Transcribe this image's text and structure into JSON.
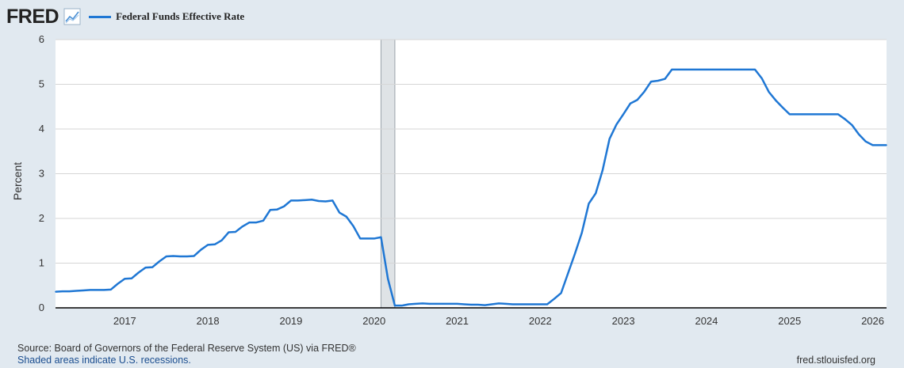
{
  "header": {
    "logo": "FRED",
    "logo_icon": "chart-trend-icon",
    "series_label": "Federal Funds Effective Rate"
  },
  "footer": {
    "source": "Source: Board of Governors of the Federal Reserve System (US) via FRED®",
    "recession_note": "Shaded areas indicate U.S. recessions.",
    "url": "fred.stlouisfed.org"
  },
  "colors": {
    "line": "#1f77d4",
    "background": "#e1e9f0",
    "plot_background": "#ffffff",
    "grid": "#d6d6d6",
    "recession": "#dfe3e6"
  },
  "chart_data": {
    "type": "line",
    "title": "",
    "ylabel": "Percent",
    "xlabel": "",
    "xlim": [
      "2016-03-01",
      "2026-03-01"
    ],
    "ylim": [
      0,
      6
    ],
    "yticks": [
      0,
      1,
      2,
      3,
      4,
      5,
      6
    ],
    "xticks": [
      "2017",
      "2018",
      "2019",
      "2020",
      "2021",
      "2022",
      "2023",
      "2024",
      "2025",
      "2026"
    ],
    "grid": true,
    "legend": "top-left",
    "recessions": [
      [
        "2020-02-01",
        "2020-04-01"
      ]
    ],
    "series": [
      {
        "name": "Federal Funds Effective Rate",
        "x": [
          "2016-03",
          "2016-04",
          "2016-05",
          "2016-06",
          "2016-07",
          "2016-08",
          "2016-09",
          "2016-10",
          "2016-11",
          "2016-12",
          "2017-01",
          "2017-02",
          "2017-03",
          "2017-04",
          "2017-05",
          "2017-06",
          "2017-07",
          "2017-08",
          "2017-09",
          "2017-10",
          "2017-11",
          "2017-12",
          "2018-01",
          "2018-02",
          "2018-03",
          "2018-04",
          "2018-05",
          "2018-06",
          "2018-07",
          "2018-08",
          "2018-09",
          "2018-10",
          "2018-11",
          "2018-12",
          "2019-01",
          "2019-02",
          "2019-03",
          "2019-04",
          "2019-05",
          "2019-06",
          "2019-07",
          "2019-08",
          "2019-09",
          "2019-10",
          "2019-11",
          "2019-12",
          "2020-01",
          "2020-02",
          "2020-03",
          "2020-04",
          "2020-05",
          "2020-06",
          "2020-07",
          "2020-08",
          "2020-09",
          "2020-10",
          "2020-11",
          "2020-12",
          "2021-01",
          "2021-02",
          "2021-03",
          "2021-04",
          "2021-05",
          "2021-06",
          "2021-07",
          "2021-08",
          "2021-09",
          "2021-10",
          "2021-11",
          "2021-12",
          "2022-01",
          "2022-02",
          "2022-03",
          "2022-04",
          "2022-05",
          "2022-06",
          "2022-07",
          "2022-08",
          "2022-09",
          "2022-10",
          "2022-11",
          "2022-12",
          "2023-01",
          "2023-02",
          "2023-03",
          "2023-04",
          "2023-05",
          "2023-06",
          "2023-07",
          "2023-08",
          "2023-09",
          "2023-10",
          "2023-11",
          "2023-12",
          "2024-01",
          "2024-02",
          "2024-03",
          "2024-04",
          "2024-05",
          "2024-06",
          "2024-07",
          "2024-08",
          "2024-09",
          "2024-10",
          "2024-11",
          "2024-12",
          "2025-01",
          "2025-02",
          "2025-03",
          "2025-04",
          "2025-05",
          "2025-06",
          "2025-07",
          "2025-08",
          "2025-09",
          "2025-10",
          "2025-11",
          "2025-12",
          "2026-01",
          "2026-02",
          "2026-03"
        ],
        "values": [
          0.36,
          0.37,
          0.37,
          0.38,
          0.39,
          0.4,
          0.4,
          0.4,
          0.41,
          0.54,
          0.65,
          0.66,
          0.79,
          0.9,
          0.91,
          1.04,
          1.15,
          1.16,
          1.15,
          1.15,
          1.16,
          1.3,
          1.41,
          1.42,
          1.51,
          1.69,
          1.7,
          1.82,
          1.91,
          1.91,
          1.95,
          2.19,
          2.2,
          2.27,
          2.4,
          2.4,
          2.41,
          2.42,
          2.39,
          2.38,
          2.4,
          2.13,
          2.04,
          1.83,
          1.55,
          1.55,
          1.55,
          1.58,
          0.65,
          0.05,
          0.05,
          0.08,
          0.09,
          0.1,
          0.09,
          0.09,
          0.09,
          0.09,
          0.09,
          0.08,
          0.07,
          0.07,
          0.06,
          0.08,
          0.1,
          0.09,
          0.08,
          0.08,
          0.08,
          0.08,
          0.08,
          0.08,
          0.2,
          0.33,
          0.77,
          1.21,
          1.68,
          2.33,
          2.56,
          3.08,
          3.78,
          4.1,
          4.33,
          4.57,
          4.65,
          4.83,
          5.06,
          5.08,
          5.12,
          5.33,
          5.33,
          5.33,
          5.33,
          5.33,
          5.33,
          5.33,
          5.33,
          5.33,
          5.33,
          5.33,
          5.33,
          5.33,
          5.13,
          4.83,
          4.64,
          4.48,
          4.33,
          4.33,
          4.33,
          4.33,
          4.33,
          4.33,
          4.33,
          4.33,
          4.22,
          4.09,
          3.88,
          3.72,
          3.64,
          3.64,
          3.64
        ]
      }
    ]
  }
}
